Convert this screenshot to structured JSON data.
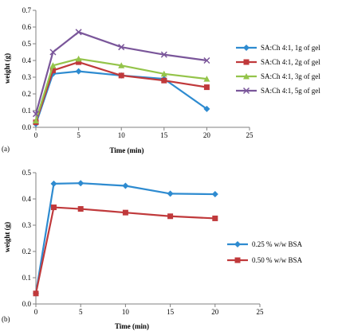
{
  "chart_data": [
    {
      "type": "line",
      "panel_label": "(a)",
      "title": "",
      "xlabel": "Time (min)",
      "ylabel": "weight (g)",
      "xlim": [
        0,
        25
      ],
      "ylim": [
        0,
        0.7
      ],
      "xticks": [
        0,
        5,
        10,
        15,
        20,
        25
      ],
      "yticks": [
        0,
        0.1,
        0.2,
        0.3,
        0.4,
        0.5,
        0.6,
        0.7
      ],
      "grid": false,
      "legend_position": "right",
      "x": [
        0,
        2,
        5,
        10,
        15,
        20
      ],
      "series": [
        {
          "name": "SA:Ch 4:1, 1g of gel",
          "color": "#2e8bd0",
          "marker": "diamond",
          "values": [
            0.02,
            0.32,
            0.335,
            0.31,
            0.29,
            0.11
          ]
        },
        {
          "name": "SA:Ch 4:1, 2g of gel",
          "color": "#c0393b",
          "marker": "square",
          "values": [
            0.03,
            0.34,
            0.39,
            0.31,
            0.28,
            0.24
          ]
        },
        {
          "name": "SA:Ch 4:1, 3g of gel",
          "color": "#94c44a",
          "marker": "triangle",
          "values": [
            0.04,
            0.37,
            0.41,
            0.37,
            0.32,
            0.29
          ]
        },
        {
          "name": "SA:Ch 4:1, 5g of gel",
          "color": "#7a569a",
          "marker": "x",
          "values": [
            0.08,
            0.45,
            0.57,
            0.48,
            0.435,
            0.4
          ]
        }
      ]
    },
    {
      "type": "line",
      "panel_label": "(b)",
      "title": "",
      "xlabel": "Time (min)",
      "ylabel": "weight (g)",
      "xlim": [
        0,
        25
      ],
      "ylim": [
        0,
        0.5
      ],
      "xticks": [
        0,
        5,
        10,
        15,
        20,
        25
      ],
      "yticks": [
        0,
        0.1,
        0.2,
        0.3,
        0.4,
        0.5
      ],
      "grid": false,
      "legend_position": "right",
      "x": [
        0,
        2,
        5,
        10,
        15,
        20
      ],
      "series": [
        {
          "name": "0.25 % w/w BSA",
          "color": "#2e8bd0",
          "marker": "diamond",
          "values": [
            0.04,
            0.458,
            0.46,
            0.45,
            0.42,
            0.418
          ]
        },
        {
          "name": "0.50 % w/w BSA",
          "color": "#c0393b",
          "marker": "square",
          "values": [
            0.04,
            0.368,
            0.362,
            0.348,
            0.334,
            0.326
          ]
        }
      ]
    }
  ]
}
